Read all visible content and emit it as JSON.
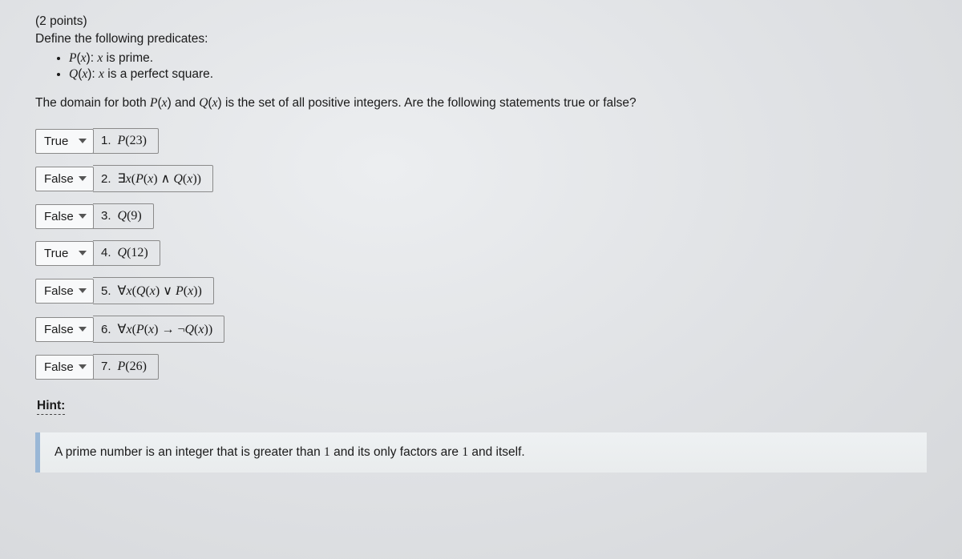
{
  "points": "(2 points)",
  "prompt": "Define the following predicates:",
  "predicates": {
    "p_fn": "P",
    "p_arg": "x",
    "p_text": " is prime.",
    "q_fn": "Q",
    "q_arg": "x",
    "q_text": " is a perfect square."
  },
  "domain_line_a": "The domain for both ",
  "domain_line_b": " and ",
  "domain_line_c": " is the set of all positive integers. Are the following statements true or false?",
  "options": {
    "true": "True",
    "false": "False"
  },
  "statements": [
    {
      "value": "True",
      "num": "1.",
      "expr_html": "<span class='mathfn'>P</span>(23)"
    },
    {
      "value": "False",
      "num": "2.",
      "expr_html": "∃<span class='ital'>x</span>(<span class='mathfn'>P</span>(<span class='ital'>x</span>) ∧ <span class='mathfn'>Q</span>(<span class='ital'>x</span>))"
    },
    {
      "value": "False",
      "num": "3.",
      "expr_html": "<span class='mathfn'>Q</span>(9)"
    },
    {
      "value": "True",
      "num": "4.",
      "expr_html": "<span class='mathfn'>Q</span>(12)"
    },
    {
      "value": "False",
      "num": "5.",
      "expr_html": "∀<span class='ital'>x</span>(<span class='mathfn'>Q</span>(<span class='ital'>x</span>) ∨ <span class='mathfn'>P</span>(<span class='ital'>x</span>))"
    },
    {
      "value": "False",
      "num": "6.",
      "expr_html": "∀<span class='ital'>x</span>(<span class='mathfn'>P</span>(<span class='ital'>x</span>) → ¬<span class='mathfn'>Q</span>(<span class='ital'>x</span>))"
    },
    {
      "value": "False",
      "num": "7.",
      "expr_html": "<span class='mathfn'>P</span>(26)"
    }
  ],
  "hint_label": "Hint:",
  "hint_a": "A prime number is an integer that is greater than ",
  "hint_one1": "1",
  "hint_b": " and its only factors are ",
  "hint_one2": "1",
  "hint_c": " and itself.",
  "colors": {
    "text": "#1a1a1a",
    "border": "#8a8a8a",
    "hint_accent": "#9ab7d6",
    "bg_light": "#eceef0",
    "bg_dark": "#d5d7da"
  }
}
